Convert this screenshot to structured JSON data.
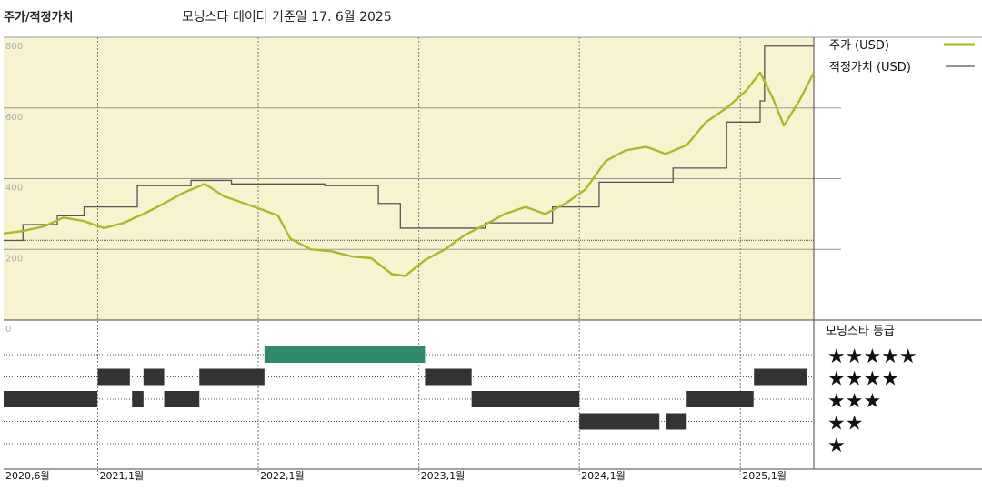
{
  "header": {
    "title": "주가/적정가치",
    "subtitle": "모닝스타 데이터 기준일 17. 6월 2025"
  },
  "colors": {
    "plot_bg": "#f8f3cf",
    "price": "#aab829",
    "fair_value": "#555555",
    "rating_green": "#2e8a68",
    "rating_dark": "#333333",
    "grid": "#999999"
  },
  "chart_data": [
    {
      "type": "line",
      "title": "주가/적정가치",
      "x_range": [
        "2020-06-01",
        "2025-06-17"
      ],
      "ylim": [
        0,
        800
      ],
      "y_ticks": [
        0,
        200,
        400,
        600,
        800
      ],
      "x_tick_labels": [
        "2020,6월",
        "2021,1월",
        "2022,1월",
        "2023,1월",
        "2024,1월",
        "2025,1월"
      ],
      "grid": true,
      "legend_position": "right",
      "legend": [
        {
          "label": "주가 (USD)",
          "color": "#aab829"
        },
        {
          "label": "적정가치 (USD)",
          "color": "#555555"
        }
      ],
      "series": [
        {
          "name": "주가 (USD)",
          "points": [
            [
              "2020-06-01",
              245
            ],
            [
              "2020-07-15",
              252
            ],
            [
              "2020-09-01",
              265
            ],
            [
              "2020-10-15",
              290
            ],
            [
              "2020-12-01",
              280
            ],
            [
              "2021-01-15",
              260
            ],
            [
              "2021-03-01",
              275
            ],
            [
              "2021-04-15",
              300
            ],
            [
              "2021-06-01",
              330
            ],
            [
              "2021-07-15",
              360
            ],
            [
              "2021-09-01",
              385
            ],
            [
              "2021-10-15",
              350
            ],
            [
              "2021-12-01",
              330
            ],
            [
              "2022-01-15",
              310
            ],
            [
              "2022-02-15",
              295
            ],
            [
              "2022-03-15",
              230
            ],
            [
              "2022-05-01",
              200
            ],
            [
              "2022-06-15",
              195
            ],
            [
              "2022-08-01",
              180
            ],
            [
              "2022-09-15",
              175
            ],
            [
              "2022-11-01",
              130
            ],
            [
              "2022-12-01",
              125
            ],
            [
              "2023-01-15",
              170
            ],
            [
              "2023-03-01",
              200
            ],
            [
              "2023-04-15",
              240
            ],
            [
              "2023-06-01",
              270
            ],
            [
              "2023-07-15",
              300
            ],
            [
              "2023-09-01",
              320
            ],
            [
              "2023-10-15",
              300
            ],
            [
              "2023-12-01",
              330
            ],
            [
              "2024-01-15",
              370
            ],
            [
              "2024-03-01",
              450
            ],
            [
              "2024-04-15",
              480
            ],
            [
              "2024-06-01",
              490
            ],
            [
              "2024-07-15",
              470
            ],
            [
              "2024-09-01",
              495
            ],
            [
              "2024-10-15",
              560
            ],
            [
              "2024-12-01",
              600
            ],
            [
              "2025-01-15",
              650
            ],
            [
              "2025-02-15",
              700
            ],
            [
              "2025-03-15",
              630
            ],
            [
              "2025-04-10",
              550
            ],
            [
              "2025-05-15",
              620
            ],
            [
              "2025-06-17",
              700
            ]
          ]
        },
        {
          "name": "적정가치 (USD)",
          "steps": [
            [
              "2020-06-01",
              225
            ],
            [
              "2020-07-15",
              270
            ],
            [
              "2020-10-01",
              295
            ],
            [
              "2020-12-01",
              320
            ],
            [
              "2021-04-01",
              380
            ],
            [
              "2021-08-01",
              395
            ],
            [
              "2021-11-01",
              385
            ],
            [
              "2022-06-01",
              380
            ],
            [
              "2022-10-01",
              330
            ],
            [
              "2022-11-20",
              260
            ],
            [
              "2023-06-01",
              275
            ],
            [
              "2023-11-01",
              320
            ],
            [
              "2024-02-15",
              390
            ],
            [
              "2024-08-01",
              430
            ],
            [
              "2024-12-01",
              560
            ],
            [
              "2025-02-15",
              620
            ],
            [
              "2025-02-25",
              775
            ],
            [
              "2025-06-17",
              775
            ]
          ]
        }
      ]
    },
    {
      "type": "rating-timeline",
      "title": "모닝스타 등급",
      "x_range": [
        "2020-06-01",
        "2025-06-17"
      ],
      "legend": [
        {
          "rating": 5,
          "label": "★★★★★"
        },
        {
          "rating": 4,
          "label": "★★★★"
        },
        {
          "rating": 3,
          "label": "★★★"
        },
        {
          "rating": 2,
          "label": "★★"
        },
        {
          "rating": 1,
          "label": "★"
        }
      ],
      "segments": [
        {
          "rating": 3,
          "start": "2020-06-01",
          "end": "2020-12-31"
        },
        {
          "rating": 4,
          "start": "2021-01-01",
          "end": "2021-03-15"
        },
        {
          "rating": 3,
          "start": "2021-03-20",
          "end": "2021-04-15"
        },
        {
          "rating": 4,
          "start": "2021-04-15",
          "end": "2021-06-01"
        },
        {
          "rating": 3,
          "start": "2021-06-01",
          "end": "2021-08-20"
        },
        {
          "rating": 4,
          "start": "2021-08-20",
          "end": "2022-01-15"
        },
        {
          "rating": 5,
          "start": "2022-01-15",
          "end": "2023-01-15"
        },
        {
          "rating": 4,
          "start": "2023-01-15",
          "end": "2023-05-01"
        },
        {
          "rating": 3,
          "start": "2023-05-01",
          "end": "2024-01-01"
        },
        {
          "rating": 2,
          "start": "2024-01-01",
          "end": "2024-07-01"
        },
        {
          "rating": 2,
          "start": "2024-07-15",
          "end": "2024-09-01"
        },
        {
          "rating": 3,
          "start": "2024-09-01",
          "end": "2025-01-31"
        },
        {
          "rating": 4,
          "start": "2025-02-01",
          "end": "2025-06-01"
        }
      ]
    }
  ]
}
